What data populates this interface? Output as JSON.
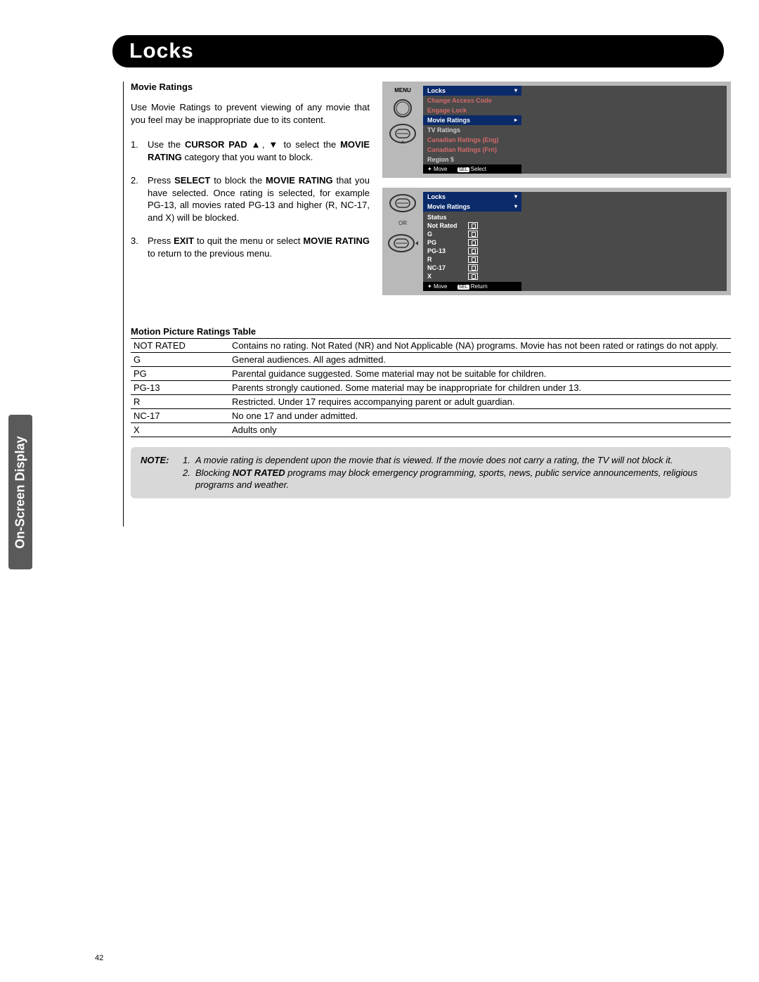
{
  "sideTab": "On-Screen Display",
  "header": "Locks",
  "section": {
    "title": "Movie Ratings",
    "intro": "Use Movie Ratings to prevent viewing of any movie that you feel may be inappropriate due to its content.",
    "steps": [
      {
        "num": "1.",
        "pre": "Use the ",
        "b1": "CURSOR PAD",
        "mid": " ▲, ▼ to select the ",
        "b2": "MOVIE RATING",
        "post": " category that you want to block."
      },
      {
        "num": "2.",
        "pre": "Press ",
        "b1": "SELECT",
        "mid": " to block the ",
        "b2": "MOVIE RATING",
        "post": " that you have selected. Once rating is selected, for example PG-13, all movies rated PG-13 and higher (R, NC-17, and X) will be blocked."
      },
      {
        "num": "3.",
        "pre": " Press ",
        "b1": "EXIT",
        "mid": " to quit the menu or select ",
        "b2": "MOVIE RATING",
        "post": " to return to the previous menu."
      }
    ]
  },
  "osd1": {
    "remoteLabel": "MENU",
    "title": "Locks",
    "items": [
      {
        "label": "Change Access Code",
        "cls": "red"
      },
      {
        "label": "Engage Lock",
        "cls": "red"
      },
      {
        "label": "Movie Ratings",
        "cls": "sel"
      },
      {
        "label": "TV Ratings",
        "cls": ""
      },
      {
        "label": "Canadian Ratings (Eng)",
        "cls": "red"
      },
      {
        "label": "Canadian Ratings (Frn)",
        "cls": "red"
      },
      {
        "label": "Region 5",
        "cls": ""
      }
    ],
    "footerMove": "Move",
    "footerSelKey": "SEL",
    "footerSel": "Select"
  },
  "osd2": {
    "or": "OR",
    "title1": "Locks",
    "title2": "Movie Ratings",
    "statusHead": "Status",
    "ratings": [
      "Not Rated",
      "G",
      "PG",
      "PG-13",
      "R",
      "NC-17",
      "X"
    ],
    "footerMove": "Move",
    "footerSelKey": "SEL",
    "footerSel": "Return"
  },
  "tableHead": "Motion Picture Ratings Table",
  "table": [
    {
      "k": "NOT RATED",
      "v": "Contains no rating. Not Rated (NR) and Not Applicable (NA) programs. Movie has not been rated or ratings do not apply."
    },
    {
      "k": "G",
      "v": "General audiences. All ages admitted."
    },
    {
      "k": "PG",
      "v": "Parental guidance suggested. Some material may not be suitable for children."
    },
    {
      "k": "PG-13",
      "v": "Parents strongly cautioned. Some material may be inappropriate for children under 13."
    },
    {
      "k": "R",
      "v": "Restricted. Under 17 requires accompanying parent or adult guardian."
    },
    {
      "k": "NC-17",
      "v": "No one 17 and under admitted."
    },
    {
      "k": "X",
      "v": "Adults only"
    }
  ],
  "note": {
    "label": "NOTE:",
    "items": [
      {
        "num": "1.",
        "text": "A movie rating is dependent upon the movie that is viewed. If the movie does not carry a rating, the TV will not block it."
      },
      {
        "num": "2.",
        "pre": "Blocking ",
        "b": "NOT RATED",
        "post": " programs may block emergency programming, sports, news, public service announcements, religious programs and weather."
      }
    ]
  },
  "pageNum": "42"
}
